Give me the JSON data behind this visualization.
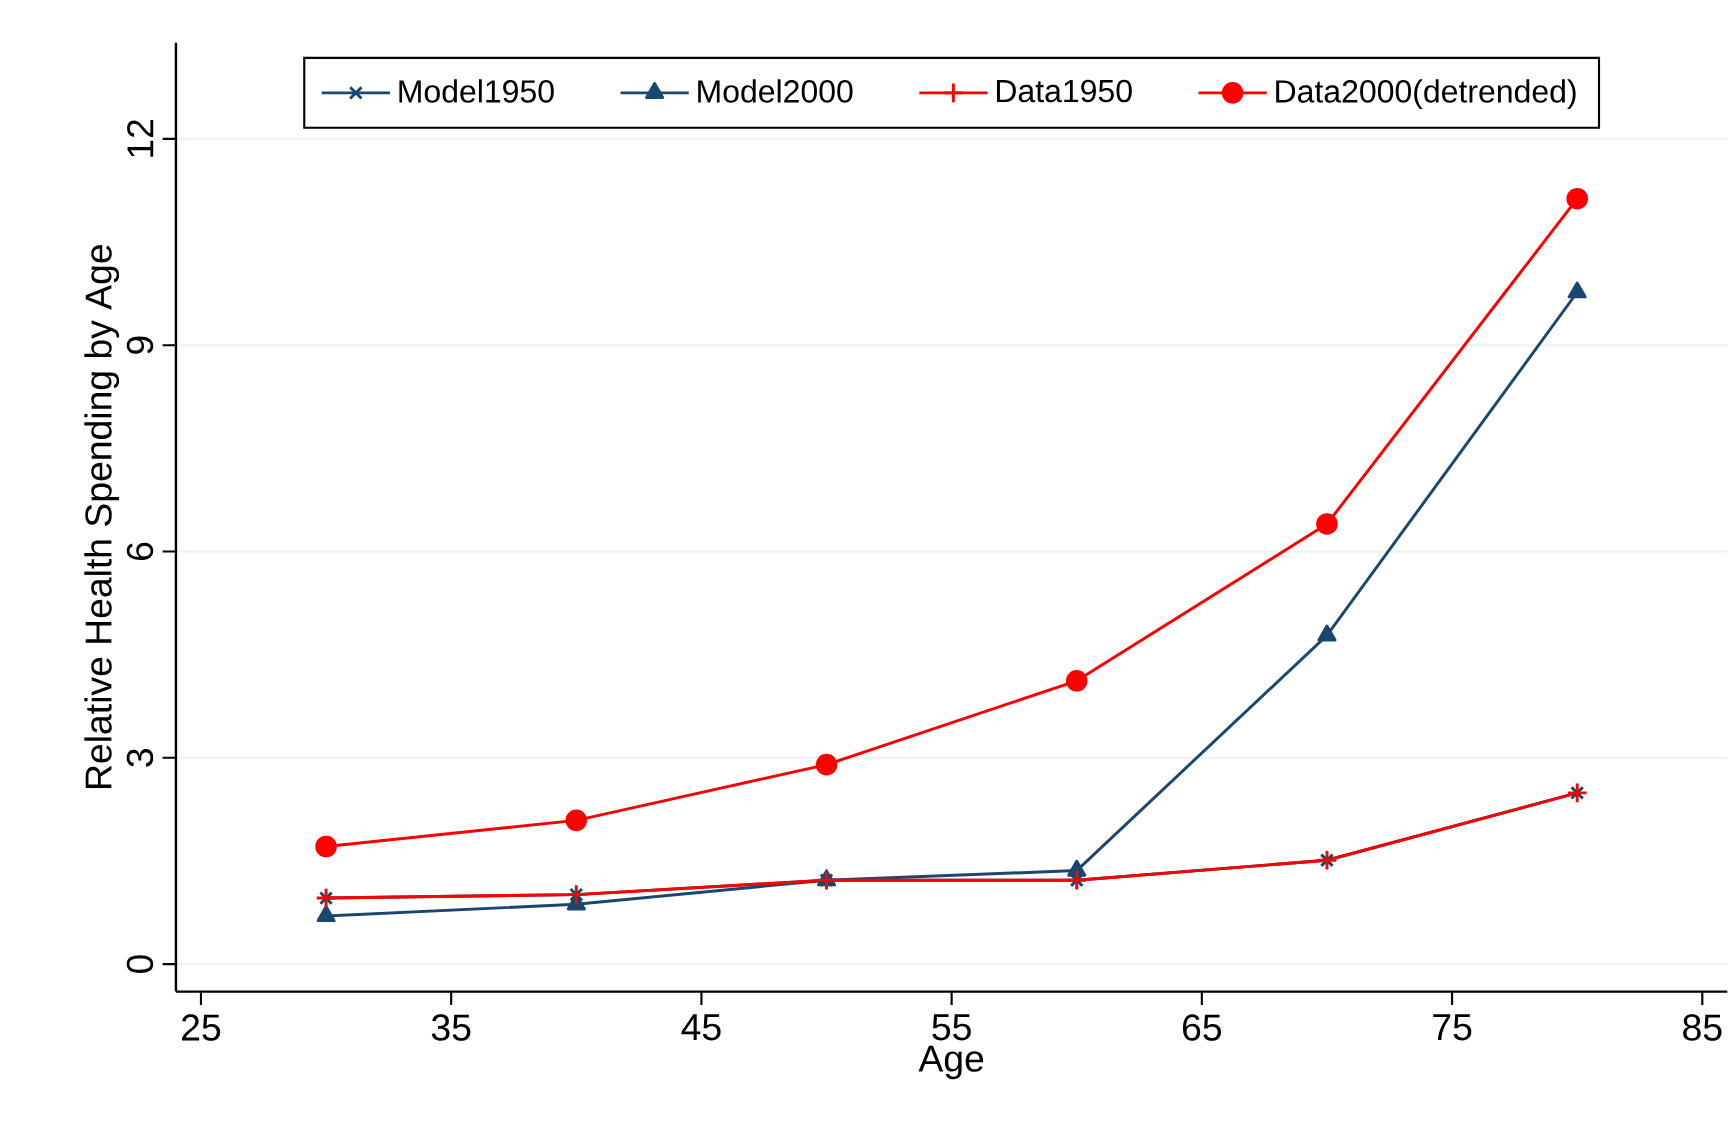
{
  "chart_data": {
    "type": "line",
    "xlabel": "Age",
    "ylabel": "Relative Health Spending by Age",
    "x": [
      30,
      40,
      50,
      60,
      70,
      80
    ],
    "series": [
      {
        "name": "Model1950",
        "color": "#1a476f",
        "marker": "cross",
        "values": [
          0.96,
          1.01,
          1.22,
          1.22,
          1.51,
          2.49
        ]
      },
      {
        "name": "Model2000",
        "color": "#1a476f",
        "marker": "triangle",
        "values": [
          0.7,
          0.87,
          1.22,
          1.36,
          4.78,
          9.77
        ]
      },
      {
        "name": "Data1950",
        "color": "#ff0000",
        "marker": "plus",
        "values": [
          0.96,
          1.01,
          1.22,
          1.22,
          1.51,
          2.49
        ]
      },
      {
        "name": "Data2000(detrended)",
        "color": "#ff0000",
        "marker": "circle",
        "values": [
          1.71,
          2.09,
          2.9,
          4.12,
          6.4,
          11.13
        ]
      }
    ],
    "xlim": [
      24,
      86
    ],
    "xticks": [
      25,
      35,
      45,
      55,
      65,
      75,
      85
    ],
    "ylim": [
      -0.4,
      13.4
    ],
    "yticks": [
      0,
      3,
      6,
      9,
      12
    ],
    "grid": "y",
    "legend": "top"
  }
}
